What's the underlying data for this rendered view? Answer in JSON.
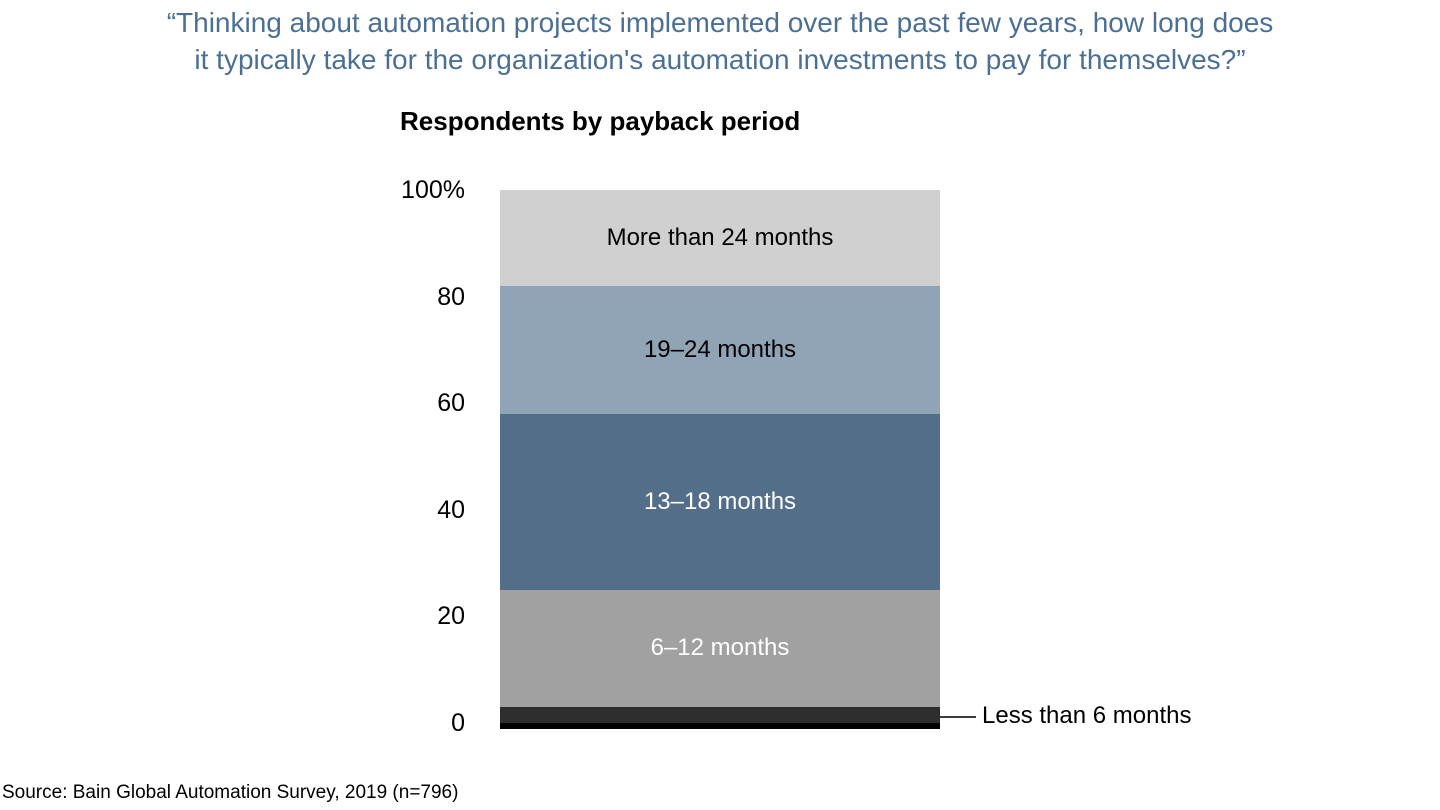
{
  "question": {
    "line1": "“Thinking about automation projects implemented over the past few years, how long does",
    "line2": "it typically take for the organization's automation investments to pay for themselves?”"
  },
  "source": "Source: Bain Global Automation Survey, 2019 (n=796)",
  "colors": {
    "question_text": "#4c7093",
    "axis_line": "#000000",
    "callout_line": "#3c3c3c"
  },
  "chart_data": {
    "type": "bar",
    "variant": "single-column-100pct-stacked",
    "title": "Respondents by payback period",
    "xlabel": "",
    "ylabel": "",
    "ylim": [
      0,
      100
    ],
    "y_ticks": [
      "100%",
      "80",
      "60",
      "40",
      "20",
      "0"
    ],
    "grid": false,
    "legend_position": "labels-inside-segments",
    "stack_order_bottom_to_top": true,
    "series": [
      {
        "name": "Less than 6 months",
        "value": 3,
        "color": "#2e2e2e",
        "label_color": "#000000",
        "label_placement": "callout-right"
      },
      {
        "name": "6–12 months",
        "value": 22,
        "color": "#a1a1a1",
        "label_color": "#ffffff",
        "label_placement": "inside"
      },
      {
        "name": "13–18 months",
        "value": 33,
        "color": "#526e88",
        "label_color": "#ffffff",
        "label_placement": "inside"
      },
      {
        "name": "19–24 months",
        "value": 24,
        "color": "#91a4b5",
        "label_color": "#000000",
        "label_placement": "inside"
      },
      {
        "name": "More than 24 months",
        "value": 18,
        "color": "#d0d0d0",
        "label_color": "#000000",
        "label_placement": "inside"
      }
    ]
  }
}
